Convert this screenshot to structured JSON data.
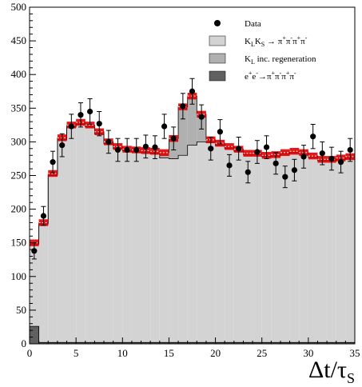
{
  "chart_data": {
    "type": "bar",
    "title": "",
    "xlabel": "Δt/τ_S",
    "xlabel_main": "Δt/τ",
    "xlabel_sub": "S",
    "ylabel": "",
    "xlim": [
      0,
      35
    ],
    "ylim": [
      0,
      500
    ],
    "bin_width": 1,
    "x_ticks": [
      0,
      5,
      10,
      15,
      20,
      25,
      30,
      35
    ],
    "y_ticks": [
      0,
      50,
      100,
      150,
      200,
      250,
      300,
      350,
      400,
      450,
      500
    ],
    "grid": false,
    "legend_position": "top-right",
    "bin_edges_start": [
      0,
      1,
      2,
      3,
      4,
      5,
      6,
      7,
      8,
      9,
      10,
      11,
      12,
      13,
      14,
      15,
      16,
      17,
      18,
      19,
      20,
      21,
      22,
      23,
      24,
      25,
      26,
      27,
      28,
      29,
      30,
      31,
      32,
      33,
      34
    ],
    "series": [
      {
        "name": "K_L K_S → π⁺π⁻π⁺π⁻",
        "legend_main": "K",
        "legend_parts": [
          [
            "K",
            ""
          ],
          [
            "L",
            "sub"
          ],
          [
            "K",
            ""
          ],
          [
            "S",
            "sub"
          ],
          [
            " → π",
            ""
          ],
          [
            "+",
            "sup"
          ],
          [
            "π",
            ""
          ],
          [
            "-",
            "sup"
          ],
          [
            "π",
            ""
          ],
          [
            "+",
            "sup"
          ],
          [
            "π",
            ""
          ],
          [
            "-",
            "sup"
          ]
        ],
        "style": "fill",
        "color": "#d3d3d3",
        "values": [
          122,
          176,
          248,
          301,
          320,
          324,
          320,
          310,
          295,
          288,
          285,
          283,
          282,
          280,
          274,
          273,
          278,
          293,
          298,
          297,
          292,
          288,
          284,
          279,
          279,
          276,
          277,
          280,
          282,
          280,
          275,
          270,
          270,
          272,
          274
        ]
      },
      {
        "name": "K_L inc. regeneration",
        "legend_parts": [
          [
            "K",
            ""
          ],
          [
            "L",
            "sub"
          ],
          [
            " inc. regeneration",
            ""
          ]
        ],
        "style": "fill",
        "color": "#b0b0b0",
        "values": [
          2,
          2,
          3,
          3,
          3,
          3,
          3,
          3,
          3,
          3,
          2,
          3,
          3,
          4,
          8,
          30,
          72,
          73,
          41,
          4,
          4,
          3,
          3,
          2,
          2,
          2,
          2,
          2,
          2,
          2,
          2,
          2,
          2,
          2,
          2
        ]
      },
      {
        "name": "e⁺e⁻→π⁺π⁻π⁺π⁻",
        "legend_parts": [
          [
            "e",
            ""
          ],
          [
            "+",
            "sup"
          ],
          [
            "e",
            ""
          ],
          [
            "-",
            "sup"
          ],
          [
            "→π",
            ""
          ],
          [
            "+",
            "sup"
          ],
          [
            "π",
            ""
          ],
          [
            "-",
            "sup"
          ],
          [
            "π",
            ""
          ],
          [
            "+",
            "sup"
          ],
          [
            "π",
            ""
          ],
          [
            "-",
            "sup"
          ]
        ],
        "style": "fill",
        "color": "#606060",
        "values": [
          26,
          2,
          2,
          2,
          2,
          2,
          2,
          2,
          2,
          2,
          2,
          2,
          2,
          2,
          2,
          2,
          2,
          2,
          2,
          2,
          2,
          2,
          2,
          2,
          2,
          2,
          2,
          2,
          2,
          2,
          2,
          2,
          2,
          2,
          2
        ]
      },
      {
        "name": "Data",
        "legend_parts": [
          [
            "Data",
            ""
          ]
        ],
        "style": "points",
        "color": "#000000",
        "x": [
          0.5,
          1.5,
          2.5,
          3.5,
          4.5,
          5.5,
          6.5,
          7.5,
          8.5,
          9.5,
          10.5,
          11.5,
          12.5,
          13.5,
          14.5,
          15.5,
          16.5,
          17.5,
          18.5,
          19.5,
          20.5,
          21.5,
          22.5,
          23.5,
          24.5,
          25.5,
          26.5,
          27.5,
          28.5,
          29.5,
          30.5,
          31.5,
          32.5,
          33.5,
          34.5
        ],
        "values": [
          138,
          190,
          270,
          295,
          323,
          340,
          345,
          327,
          300,
          288,
          288,
          288,
          293,
          292,
          323,
          305,
          353,
          375,
          337,
          290,
          315,
          265,
          290,
          255,
          285,
          292,
          268,
          248,
          258,
          278,
          308,
          283,
          275,
          270,
          288
        ],
        "errors": [
          12,
          14,
          16,
          17,
          18,
          18,
          19,
          18,
          17,
          17,
          17,
          17,
          17,
          17,
          18,
          17,
          19,
          19,
          18,
          17,
          18,
          16,
          17,
          16,
          17,
          17,
          16,
          16,
          16,
          17,
          18,
          17,
          17,
          16,
          17
        ]
      }
    ],
    "uncertainty_band": {
      "color": "#e00000",
      "half_width": [
        5,
        5,
        5,
        5,
        5,
        5,
        5,
        5,
        5,
        5,
        5,
        5,
        5,
        5,
        5,
        5,
        5,
        5,
        5,
        5,
        5,
        5,
        5,
        5,
        5,
        5,
        5,
        5,
        5,
        5,
        5,
        5,
        5,
        5,
        5
      ]
    }
  }
}
